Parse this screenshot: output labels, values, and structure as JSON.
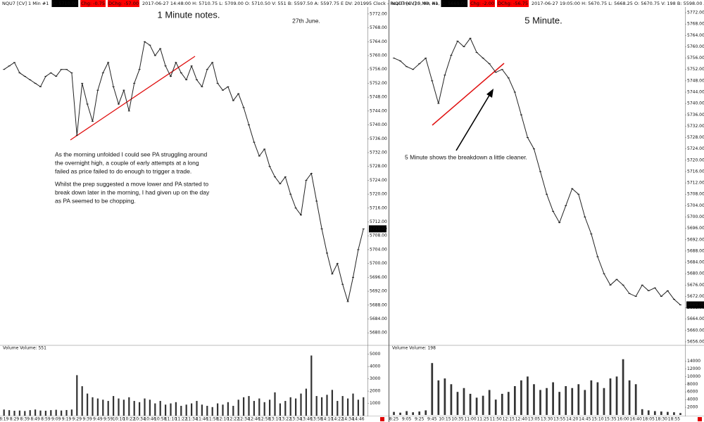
{
  "chart_data": [
    {
      "type": "line",
      "header": [
        {
          "text": "NQU7 [CV]  1 Min  #1"
        },
        {
          "text": "C: 5710.00",
          "highlight": "#000000"
        },
        {
          "text": "Chg: -0.75",
          "highlight": "#ff0000"
        },
        {
          "text": "DChg: -57.00",
          "highlight": "#ff0000"
        },
        {
          "text": "2017-06-27 14:48:00  H: 5710.75  L: 5709.00  O: 5710.50  V: 551  B: 5597.50  A: 5597.75 E  DV: 201995  Clock - RealTime  (20, 90, No, No, No)"
        }
      ],
      "title": "1 Minute notes.",
      "date_note": "27th June.",
      "notes": [
        [
          "As the morning unfolded I could see PA struggling around",
          "the overnight high, a couple of early attempts at a long",
          "failed as price failed to do enough to trigger a trade."
        ],
        [
          "Whilst the prep suggested a move lower and PA started to",
          "break down later in the morning, I had given up on the day",
          "as PA seemed to be chopping."
        ]
      ],
      "categories": [
        "8:19",
        null,
        "8:29",
        null,
        "8:39",
        null,
        "8:49",
        null,
        "8:59",
        null,
        "9:09",
        null,
        "9:19",
        null,
        "9:29",
        null,
        "9:39",
        null,
        "9:49",
        null,
        "9:59",
        null,
        "10:10",
        null,
        "10:22",
        null,
        "10:34",
        null,
        "10:46",
        null,
        "10:58",
        null,
        "11:10",
        null,
        "11:22",
        null,
        "11:34",
        null,
        "11:46",
        null,
        "11:58",
        null,
        "12:10",
        null,
        "12:22",
        null,
        "12:34",
        null,
        "12:46",
        null,
        "12:58",
        null,
        "13:10",
        null,
        "13:22",
        null,
        "13:34",
        null,
        "13:46",
        null,
        "13:58",
        null,
        "14:10",
        null,
        "14:22",
        null,
        "14:34",
        null,
        "14:46",
        null
      ],
      "values": [
        5756,
        5757,
        5758,
        5755,
        5754,
        5753,
        5752,
        5751,
        5754,
        5755,
        5754,
        5756,
        5756,
        5755,
        5737,
        5752,
        5746,
        5741,
        5750,
        5755,
        5758,
        5751,
        5746,
        5750,
        5744,
        5752,
        5756,
        5764,
        5763,
        5760,
        5762,
        5757,
        5754,
        5758,
        5755,
        5753,
        5757,
        5753,
        5751,
        5756,
        5758,
        5752,
        5750,
        5751,
        5747,
        5749,
        5745,
        5740,
        5735,
        5731,
        5733,
        5728,
        5725,
        5723,
        5725,
        5720,
        5716,
        5714,
        5724,
        5726,
        5718,
        5710,
        5703,
        5697,
        5700,
        5694,
        5689,
        5696,
        5704,
        5710
      ],
      "color": "#222222",
      "ylim": [
        5677,
        5774
      ],
      "yticks": [
        {
          "value": 5680,
          "label": "5680.00"
        },
        {
          "value": 5684,
          "label": "5684.00"
        },
        {
          "value": 5688,
          "label": "5688.00"
        },
        {
          "value": 5692,
          "label": "5692.00"
        },
        {
          "value": 5696,
          "label": "5696.00"
        },
        {
          "value": 5700,
          "label": "5700.00"
        },
        {
          "value": 5704,
          "label": "5704.00"
        },
        {
          "value": 5708,
          "label": "5708.00"
        },
        {
          "value": 5712,
          "label": "5712.00"
        },
        {
          "value": 5716,
          "label": "5716.00"
        },
        {
          "value": 5720,
          "label": "5720.00"
        },
        {
          "value": 5724,
          "label": "5724.00"
        },
        {
          "value": 5728,
          "label": "5728.00"
        },
        {
          "value": 5732,
          "label": "5732.00"
        },
        {
          "value": 5736,
          "label": "5736.00"
        },
        {
          "value": 5740,
          "label": "5740.00"
        },
        {
          "value": 5744,
          "label": "5744.00"
        },
        {
          "value": 5748,
          "label": "5748.00"
        },
        {
          "value": 5752,
          "label": "5752.00"
        },
        {
          "value": 5756,
          "label": "5756.00"
        },
        {
          "value": 5760,
          "label": "5760.00"
        },
        {
          "value": 5764,
          "label": "5764.00"
        },
        {
          "value": 5768,
          "label": "5768.00"
        },
        {
          "value": 5772,
          "label": "5772.00"
        }
      ],
      "last_value": {
        "value": 5710,
        "label": "5710.00"
      },
      "volume": {
        "label": "Volume  Volume: 551",
        "values": [
          500,
          450,
          400,
          420,
          380,
          450,
          500,
          420,
          400,
          450,
          480,
          420,
          460,
          500,
          3300,
          2400,
          1800,
          1500,
          1400,
          1300,
          1200,
          1600,
          1400,
          1300,
          1500,
          1200,
          1100,
          1400,
          1300,
          1000,
          1200,
          900,
          1000,
          1100,
          800,
          900,
          1000,
          1200,
          900,
          800,
          700,
          1000,
          900,
          1100,
          800,
          1300,
          1500,
          1600,
          1200,
          1400,
          1100,
          1300,
          1900,
          1000,
          1200,
          1500,
          1400,
          1800,
          2200,
          4900,
          1600,
          1500,
          1700,
          2100,
          1200,
          1600,
          1400,
          1800,
          1300,
          1500
        ],
        "color": "#333333",
        "ylim": [
          0,
          5500
        ],
        "yticks": [
          1000,
          2000,
          3000,
          4000,
          5000
        ]
      }
    },
    {
      "type": "line",
      "header": [
        {
          "text": "NQU7 [CV]  5 Min  #1"
        },
        {
          "text": "C: 5669.00",
          "highlight": "#000000"
        },
        {
          "text": "Chg: -2.00",
          "highlight": "#ff0000"
        },
        {
          "text": "DChg: -56.75",
          "highlight": "#ff0000"
        },
        {
          "text": "2017-06-27 19:05:00  H: 5670.75  L: 5668.25  O: 5670.75  V: 198  B: 5598.00  A: 5598.25 E  DV: 201991"
        }
      ],
      "title": "5 Minute.",
      "notes": [
        [
          "5 Minute shows the breakdown a little cleaner."
        ]
      ],
      "categories": [
        "8:25",
        null,
        "9:05",
        null,
        "9:25",
        null,
        "9:45",
        null,
        "10:15",
        null,
        "10:35",
        null,
        "11:00",
        null,
        "11:25",
        null,
        "11:50",
        null,
        "12:15",
        null,
        "12:40",
        null,
        "13:05",
        null,
        "13:30",
        null,
        "13:55",
        null,
        "14:20",
        null,
        "14:45",
        null,
        "15:10",
        null,
        "15:35",
        null,
        "16:00",
        null,
        "16:40",
        null,
        "18:05",
        null,
        "18:30",
        null,
        "18:55",
        null
      ],
      "values": [
        5756,
        5755,
        5753,
        5752,
        5754,
        5756,
        5748,
        5740,
        5750,
        5757,
        5762,
        5760,
        5763,
        5758,
        5756,
        5754,
        5751,
        5752,
        5749,
        5744,
        5736,
        5728,
        5724,
        5716,
        5708,
        5702,
        5698,
        5704,
        5710,
        5708,
        5700,
        5694,
        5686,
        5680,
        5676,
        5678,
        5676,
        5673,
        5672,
        5676,
        5674,
        5675,
        5672,
        5674,
        5671,
        5669
      ],
      "color": "#222222",
      "ylim": [
        5655,
        5774
      ],
      "yticks": [
        {
          "value": 5656,
          "label": "5656.00"
        },
        {
          "value": 5660,
          "label": "5660.00"
        },
        {
          "value": 5664,
          "label": "5664.00"
        },
        {
          "value": 5668,
          "label": "5668.00"
        },
        {
          "value": 5672,
          "label": "5672.00"
        },
        {
          "value": 5676,
          "label": "5676.00"
        },
        {
          "value": 5680,
          "label": "5680.00"
        },
        {
          "value": 5684,
          "label": "5684.00"
        },
        {
          "value": 5688,
          "label": "5688.00"
        },
        {
          "value": 5692,
          "label": "5692.00"
        },
        {
          "value": 5696,
          "label": "5696.00"
        },
        {
          "value": 5700,
          "label": "5700.00"
        },
        {
          "value": 5704,
          "label": "5704.00"
        },
        {
          "value": 5708,
          "label": "5708.00"
        },
        {
          "value": 5712,
          "label": "5712.00"
        },
        {
          "value": 5716,
          "label": "5716.00"
        },
        {
          "value": 5720,
          "label": "5720.00"
        },
        {
          "value": 5724,
          "label": "5724.00"
        },
        {
          "value": 5728,
          "label": "5728.00"
        },
        {
          "value": 5732,
          "label": "5732.00"
        },
        {
          "value": 5736,
          "label": "5736.00"
        },
        {
          "value": 5740,
          "label": "5740.00"
        },
        {
          "value": 5744,
          "label": "5744.00"
        },
        {
          "value": 5748,
          "label": "5748.00"
        },
        {
          "value": 5752,
          "label": "5752.00"
        },
        {
          "value": 5756,
          "label": "5756.00"
        },
        {
          "value": 5760,
          "label": "5760.00"
        },
        {
          "value": 5764,
          "label": "5764.00"
        },
        {
          "value": 5768,
          "label": "5768.00"
        },
        {
          "value": 5772,
          "label": "5772.00"
        }
      ],
      "last_value": {
        "value": 5669,
        "label": "5669.00"
      },
      "volume": {
        "label": "Volume  Volume: 198",
        "values": [
          800,
          600,
          1000,
          700,
          900,
          1200,
          13500,
          9000,
          9500,
          8000,
          6000,
          7000,
          5500,
          4500,
          5000,
          6500,
          4000,
          5500,
          6000,
          7500,
          9000,
          10000,
          8000,
          6500,
          7000,
          8500,
          6000,
          7500,
          7000,
          8000,
          6500,
          9000,
          8500,
          7000,
          9500,
          10000,
          14500,
          9000,
          8000,
          1500,
          1200,
          1000,
          900,
          800,
          700,
          500
        ],
        "color": "#333333",
        "ylim": [
          0,
          15000
        ],
        "yticks": [
          2000,
          4000,
          6000,
          8000,
          10000,
          12000,
          14000
        ]
      }
    }
  ]
}
